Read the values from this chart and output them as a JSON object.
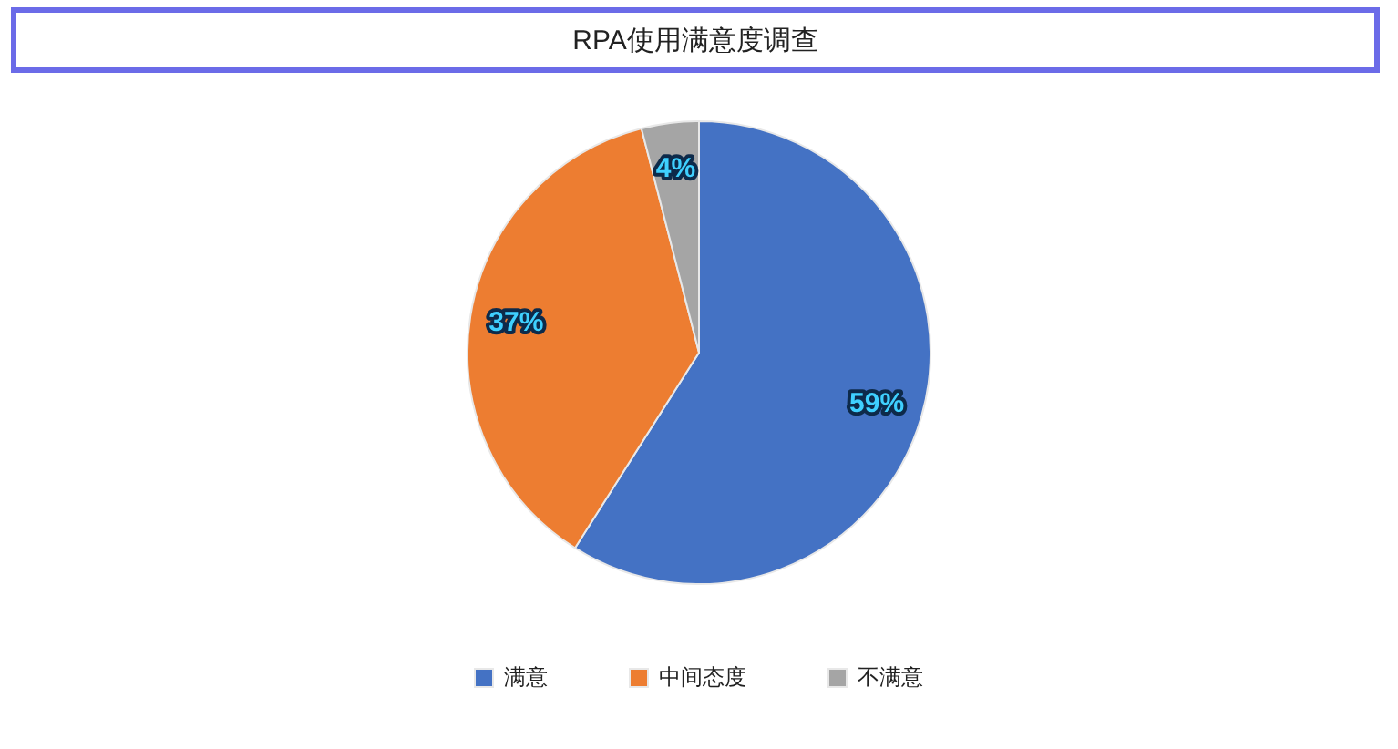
{
  "chart_data": {
    "type": "pie",
    "title": "RPA使用满意度调查",
    "categories": [
      "满意",
      "中间态度",
      "不满意"
    ],
    "values": [
      59,
      37,
      4
    ],
    "colors": [
      "#4472c4",
      "#ed7d31",
      "#a5a5a5"
    ],
    "value_labels": [
      "59%",
      "37%",
      "4%"
    ],
    "legend": "bottom"
  }
}
